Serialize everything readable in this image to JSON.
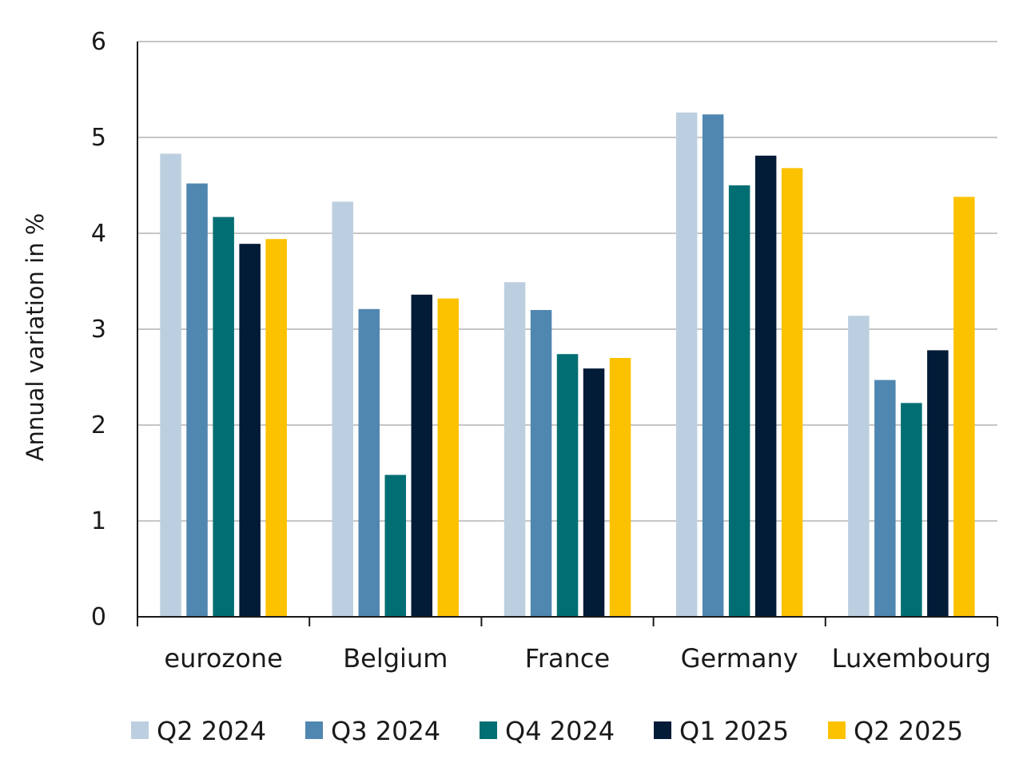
{
  "chart_data": {
    "type": "bar",
    "title": "",
    "xlabel": "",
    "ylabel": "Annual variation in %",
    "ylim": [
      0,
      6
    ],
    "yticks": [
      "0",
      "1",
      "2",
      "3",
      "4",
      "5",
      "6"
    ],
    "grid": true,
    "legend_position": "bottom",
    "categories": [
      "eurozone",
      "Belgium",
      "France",
      "Germany",
      "Luxembourg"
    ],
    "series": [
      {
        "name": "Q2 2024",
        "color": "#bccfe0",
        "values": [
          4.83,
          4.33,
          3.49,
          5.26,
          3.14
        ]
      },
      {
        "name": "Q3 2024",
        "color": "#5087b0",
        "values": [
          4.52,
          3.21,
          3.2,
          5.24,
          2.47
        ]
      },
      {
        "name": "Q4 2024",
        "color": "#006e72",
        "values": [
          4.17,
          1.48,
          2.74,
          4.5,
          2.23
        ]
      },
      {
        "name": "Q1 2025",
        "color": "#021b37",
        "values": [
          3.89,
          3.36,
          2.59,
          4.81,
          2.78
        ]
      },
      {
        "name": "Q2 2025",
        "color": "#fcc200",
        "values": [
          3.94,
          3.32,
          2.7,
          4.68,
          4.38
        ]
      }
    ]
  }
}
